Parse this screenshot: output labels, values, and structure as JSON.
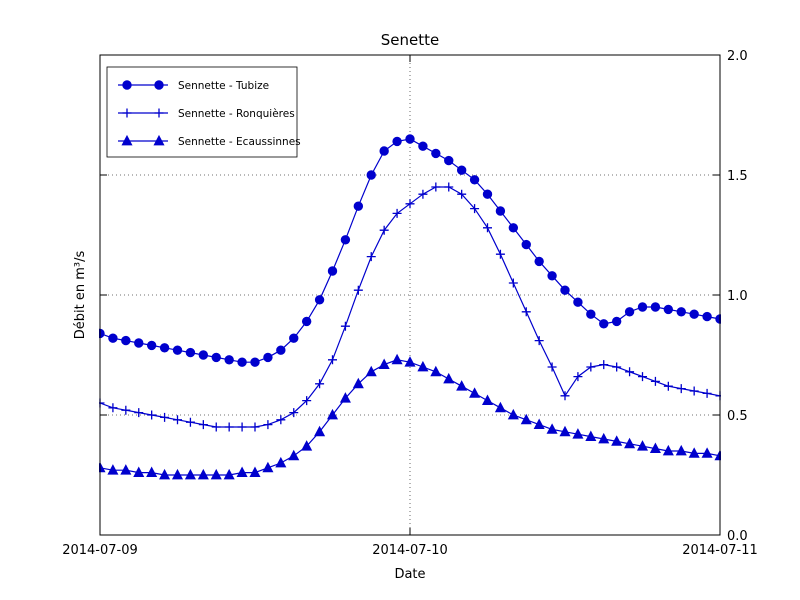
{
  "figure": {
    "background": "#ffffff"
  },
  "chart_data": {
    "type": "line",
    "title": "Senette",
    "xlabel": "Date",
    "ylabel": "Débit en m³/s",
    "xtick_labels": [
      "2014-07-09",
      "2014-07-10",
      "2014-07-11"
    ],
    "xtick_hours": [
      0,
      24,
      48
    ],
    "ytick_labels": [
      "0.0",
      "0.5",
      "1.0",
      "1.5",
      "2.0"
    ],
    "ytick_values": [
      0,
      0.5,
      1.0,
      1.5,
      2.0
    ],
    "ylim": [
      0.0,
      2.0
    ],
    "x_span_hours": 48,
    "x_step_hours": 1,
    "grid": {
      "style": "dotted",
      "horizontal_at": [
        0.5,
        1.0,
        1.5
      ],
      "vertical_at_hour": [
        24
      ]
    },
    "line_color": "#0000cd",
    "legend_position": "upper-left",
    "series": [
      {
        "name": "Sennette - Tubize",
        "marker": "circle",
        "color": "#0000cd",
        "values": [
          0.84,
          0.82,
          0.81,
          0.8,
          0.79,
          0.78,
          0.77,
          0.76,
          0.75,
          0.74,
          0.73,
          0.72,
          0.72,
          0.74,
          0.77,
          0.82,
          0.89,
          0.98,
          1.1,
          1.23,
          1.37,
          1.5,
          1.6,
          1.64,
          1.65,
          1.62,
          1.59,
          1.56,
          1.52,
          1.48,
          1.42,
          1.35,
          1.28,
          1.21,
          1.14,
          1.08,
          1.02,
          0.97,
          0.92,
          0.88,
          0.89,
          0.93,
          0.95,
          0.95,
          0.94,
          0.93,
          0.92,
          0.91,
          0.9
        ]
      },
      {
        "name": "Sennette - Ronquières",
        "marker": "plus",
        "color": "#0000cd",
        "values": [
          0.55,
          0.53,
          0.52,
          0.51,
          0.5,
          0.49,
          0.48,
          0.47,
          0.46,
          0.45,
          0.45,
          0.45,
          0.45,
          0.46,
          0.48,
          0.51,
          0.56,
          0.63,
          0.73,
          0.87,
          1.02,
          1.16,
          1.27,
          1.34,
          1.38,
          1.42,
          1.45,
          1.45,
          1.42,
          1.36,
          1.28,
          1.17,
          1.05,
          0.93,
          0.81,
          0.7,
          0.58,
          0.66,
          0.7,
          0.71,
          0.7,
          0.68,
          0.66,
          0.64,
          0.62,
          0.61,
          0.6,
          0.59,
          0.58
        ]
      },
      {
        "name": "Sennette - Ecaussinnes",
        "marker": "triangle-up",
        "color": "#0000cd",
        "values": [
          0.28,
          0.27,
          0.27,
          0.26,
          0.26,
          0.25,
          0.25,
          0.25,
          0.25,
          0.25,
          0.25,
          0.26,
          0.26,
          0.28,
          0.3,
          0.33,
          0.37,
          0.43,
          0.5,
          0.57,
          0.63,
          0.68,
          0.71,
          0.73,
          0.72,
          0.7,
          0.68,
          0.65,
          0.62,
          0.59,
          0.56,
          0.53,
          0.5,
          0.48,
          0.46,
          0.44,
          0.43,
          0.42,
          0.41,
          0.4,
          0.39,
          0.38,
          0.37,
          0.36,
          0.35,
          0.35,
          0.34,
          0.34,
          0.33
        ]
      }
    ]
  }
}
